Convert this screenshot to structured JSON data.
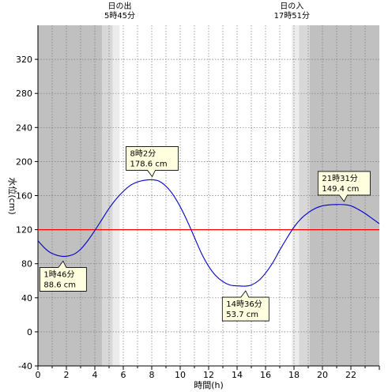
{
  "chart_data": {
    "type": "line",
    "xlabel": "時間(h)",
    "ylabel": "水位(cm)",
    "xlim": [
      0,
      24
    ],
    "ylim": [
      -40,
      360
    ],
    "xticks": [
      0,
      2,
      4,
      6,
      8,
      10,
      12,
      14,
      16,
      18,
      20,
      22
    ],
    "yticks": [
      -40,
      0,
      40,
      80,
      120,
      160,
      200,
      240,
      280,
      320
    ],
    "grid": true,
    "reference_line": {
      "y": 120,
      "color": "#ff0000"
    },
    "sun": {
      "sunrise": {
        "label": "日の出",
        "time": "5時45分",
        "hour": 5.75
      },
      "sunset": {
        "label": "日の入",
        "time": "17時51分",
        "hour": 17.85
      }
    },
    "series": [
      {
        "color": "#0000cc",
        "x": [
          0,
          0.5,
          1,
          1.77,
          2.5,
          3,
          3.5,
          4,
          4.5,
          5,
          5.5,
          6,
          6.5,
          7,
          7.5,
          8.03,
          8.5,
          9,
          9.5,
          10,
          10.5,
          11,
          11.5,
          12,
          12.5,
          13,
          13.5,
          14,
          14.6,
          15,
          15.5,
          16,
          16.5,
          17,
          17.5,
          18,
          18.5,
          19,
          19.5,
          20,
          20.5,
          21,
          21.52,
          22,
          22.5,
          23,
          23.5,
          24
        ],
        "y": [
          107,
          98,
          92,
          88.6,
          91,
          97,
          107,
          119,
          132,
          145,
          156,
          165,
          172,
          176,
          178,
          178.6,
          177,
          171,
          161,
          147,
          130,
          111,
          92,
          77,
          66,
          59,
          55,
          54,
          53.7,
          55,
          60,
          69,
          81,
          96,
          110,
          123,
          133,
          140,
          145,
          148,
          149.2,
          149.5,
          149.4,
          148,
          144,
          139,
          133,
          127
        ]
      }
    ],
    "annotations": [
      {
        "line1": "1時46分",
        "line2": "88.6 cm",
        "x": 1.77,
        "y": 88.6,
        "placement": "below"
      },
      {
        "line1": "8時2分",
        "line2": "178.6 cm",
        "x": 8.03,
        "y": 178.6,
        "placement": "above"
      },
      {
        "line1": "14時36分",
        "line2": "53.7 cm",
        "x": 14.6,
        "y": 53.7,
        "placement": "below"
      },
      {
        "line1": "21時31分",
        "line2": "149.4 cm",
        "x": 21.52,
        "y": 149.4,
        "placement": "above"
      }
    ]
  }
}
